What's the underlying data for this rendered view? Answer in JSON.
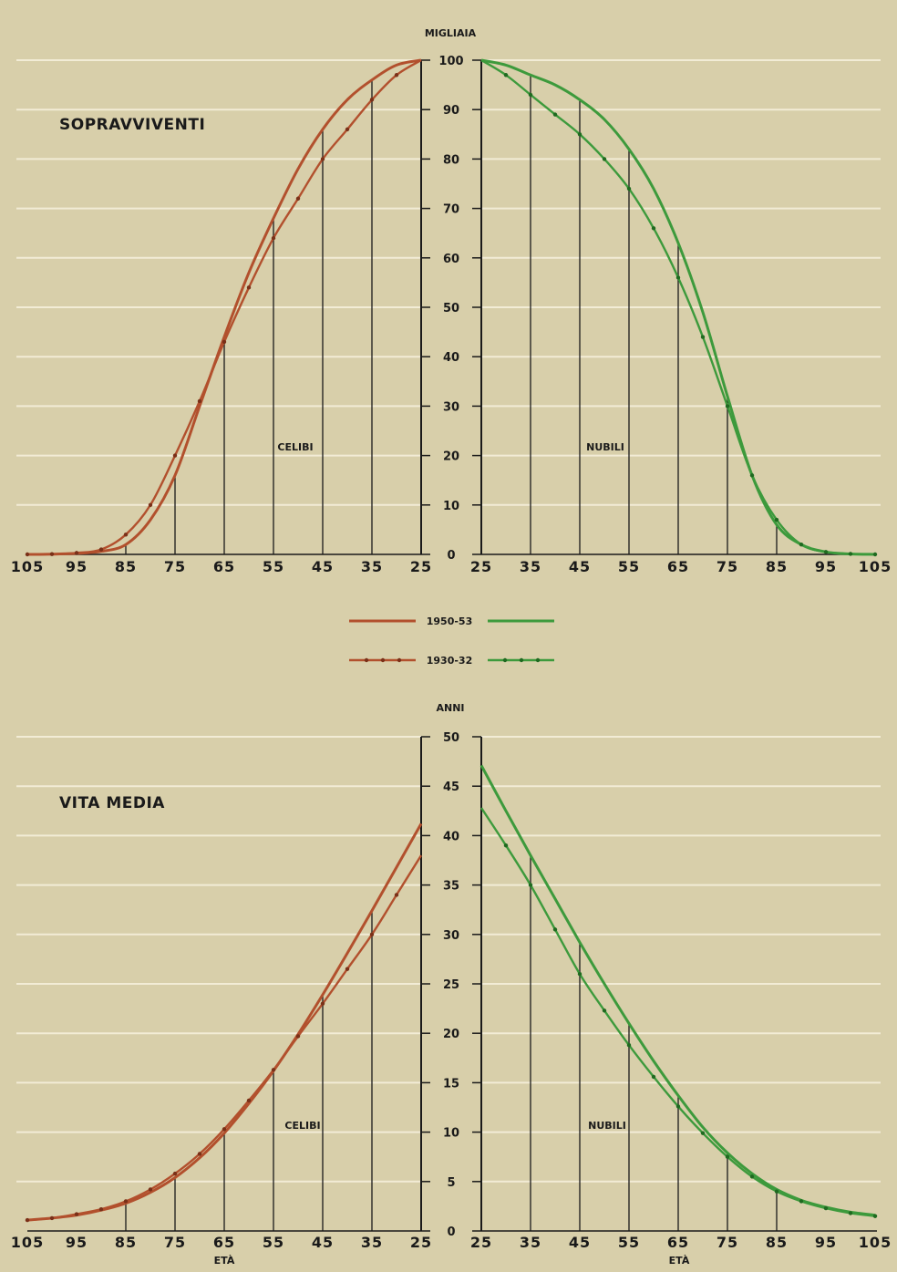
{
  "colors": {
    "background": "#d8cfaa",
    "gridline": "#f2ecd6",
    "celibi": "#b2502d",
    "nubili": "#3d9a3c",
    "axis": "#1a1a1a"
  },
  "legend": {
    "period_1950": "1950-53",
    "period_1930": "1930-32",
    "style_1950": "solid line",
    "style_1930": "line with dots"
  },
  "chart_data": [
    {
      "type": "line",
      "title": "SOPRAVVIVENTI",
      "ylabel": "MIGLIAIA",
      "ylim": [
        0,
        100
      ],
      "yticks": [
        "0",
        "10",
        "20",
        "30",
        "40",
        "50",
        "60",
        "70",
        "80",
        "90",
        "100"
      ],
      "panels": [
        {
          "label": "CELIBI",
          "xlim": [
            105,
            25
          ],
          "xticks": [
            "105",
            "95",
            "85",
            "75",
            "65",
            "55",
            "45",
            "35",
            "25"
          ],
          "series": [
            {
              "name": "1950-53",
              "color": "celibi",
              "marker": false,
              "x": [
                25,
                30,
                35,
                40,
                45,
                50,
                55,
                60,
                65,
                70,
                75,
                80,
                85,
                90,
                95,
                100,
                105
              ],
              "y": [
                100,
                99,
                96,
                92,
                86,
                78,
                68,
                57,
                44,
                30,
                16,
                7,
                2,
                0.6,
                0.2,
                0.05,
                0
              ]
            },
            {
              "name": "1930-32",
              "color": "celibi",
              "marker": true,
              "x": [
                25,
                30,
                35,
                40,
                45,
                50,
                55,
                60,
                65,
                70,
                75,
                80,
                85,
                90,
                95,
                100,
                105
              ],
              "y": [
                100,
                97,
                92,
                86,
                80,
                72,
                64,
                54,
                43,
                31,
                20,
                10,
                4,
                1,
                0.3,
                0.05,
                0
              ]
            }
          ]
        },
        {
          "label": "NUBILI",
          "xlim": [
            25,
            105
          ],
          "xticks": [
            "25",
            "35",
            "45",
            "55",
            "65",
            "75",
            "85",
            "95",
            "105"
          ],
          "series": [
            {
              "name": "1950-53",
              "color": "nubili",
              "marker": false,
              "x": [
                25,
                30,
                35,
                40,
                45,
                50,
                55,
                60,
                65,
                70,
                75,
                80,
                85,
                90,
                95,
                100,
                105
              ],
              "y": [
                100,
                99,
                97,
                95,
                92,
                88,
                82,
                74,
                63,
                49,
                32,
                16,
                6,
                2,
                0.5,
                0.1,
                0
              ]
            },
            {
              "name": "1930-32",
              "color": "nubili",
              "marker": true,
              "x": [
                25,
                30,
                35,
                40,
                45,
                50,
                55,
                60,
                65,
                70,
                75,
                80,
                85,
                90,
                95,
                100,
                105
              ],
              "y": [
                100,
                97,
                93,
                89,
                85,
                80,
                74,
                66,
                56,
                44,
                30,
                16,
                7,
                2,
                0.5,
                0.1,
                0
              ]
            }
          ]
        }
      ]
    },
    {
      "type": "line",
      "title": "VITA MEDIA",
      "ylabel": "ANNI",
      "ylim": [
        0,
        50
      ],
      "yticks": [
        "0",
        "5",
        "10",
        "15",
        "20",
        "25",
        "30",
        "35",
        "40",
        "45",
        "50"
      ],
      "xlabel": "ETÀ",
      "panels": [
        {
          "label": "CELIBI",
          "xlim": [
            105,
            25
          ],
          "xticks": [
            "105",
            "95",
            "85",
            "75",
            "65",
            "55",
            "45",
            "35",
            "25"
          ],
          "series": [
            {
              "name": "1950-53",
              "color": "celibi",
              "marker": false,
              "x": [
                25,
                30,
                35,
                40,
                45,
                50,
                55,
                60,
                65,
                70,
                75,
                80,
                85,
                90,
                95,
                100,
                105
              ],
              "y": [
                41.2,
                36.8,
                32.4,
                28.1,
                23.9,
                19.9,
                16.2,
                12.9,
                9.9,
                7.4,
                5.4,
                3.9,
                2.8,
                2.1,
                1.6,
                1.3,
                1.1
              ]
            },
            {
              "name": "1930-32",
              "color": "celibi",
              "marker": true,
              "x": [
                25,
                30,
                35,
                40,
                45,
                50,
                55,
                60,
                65,
                70,
                75,
                80,
                85,
                90,
                95,
                100,
                105
              ],
              "y": [
                38,
                34,
                30,
                26.5,
                23,
                19.7,
                16.3,
                13.2,
                10.3,
                7.8,
                5.8,
                4.2,
                3,
                2.2,
                1.7,
                1.3,
                1.1
              ]
            }
          ]
        },
        {
          "label": "NUBILI",
          "xlim": [
            25,
            105
          ],
          "xticks": [
            "25",
            "35",
            "45",
            "55",
            "65",
            "75",
            "85",
            "95",
            "105"
          ],
          "series": [
            {
              "name": "1950-53",
              "color": "nubili",
              "marker": false,
              "x": [
                25,
                30,
                35,
                40,
                45,
                50,
                55,
                60,
                65,
                70,
                75,
                80,
                85,
                90,
                95,
                100,
                105
              ],
              "y": [
                47.1,
                42.5,
                38,
                33.6,
                29.2,
                25,
                21,
                17.2,
                13.7,
                10.5,
                7.9,
                5.8,
                4.2,
                3.1,
                2.4,
                1.9,
                1.6
              ]
            },
            {
              "name": "1930-32",
              "color": "nubili",
              "marker": true,
              "x": [
                25,
                30,
                35,
                40,
                45,
                50,
                55,
                60,
                65,
                70,
                75,
                80,
                85,
                90,
                95,
                100,
                105
              ],
              "y": [
                42.8,
                39,
                35,
                30.5,
                26,
                22.3,
                18.8,
                15.6,
                12.6,
                9.9,
                7.5,
                5.5,
                4,
                3,
                2.3,
                1.8,
                1.5
              ]
            }
          ]
        }
      ]
    }
  ]
}
